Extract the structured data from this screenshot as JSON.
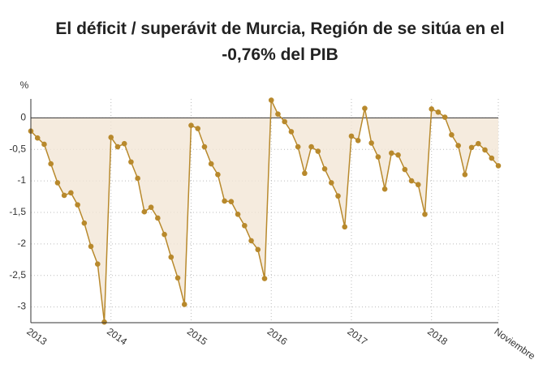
{
  "chart_data": {
    "type": "line",
    "title": "El déficit / superávit de Murcia, Región de se sitúa en el -0,76% del PIB",
    "ylabel": "%",
    "categories": [
      "2013",
      null,
      null,
      null,
      null,
      null,
      null,
      null,
      null,
      null,
      null,
      null,
      "2014",
      null,
      null,
      null,
      null,
      null,
      null,
      null,
      null,
      null,
      null,
      null,
      "2015",
      null,
      null,
      null,
      null,
      null,
      null,
      null,
      null,
      null,
      null,
      null,
      "2016",
      null,
      null,
      null,
      null,
      null,
      null,
      null,
      null,
      null,
      null,
      null,
      "2017",
      null,
      null,
      null,
      null,
      null,
      null,
      null,
      null,
      null,
      null,
      null,
      "2018",
      null,
      null,
      null,
      null,
      null,
      null,
      null,
      null,
      null,
      "Noviembre"
    ],
    "series": [
      {
        "name": "Déficit / superávit",
        "color": "#b8892c",
        "values": [
          -0.21,
          -0.32,
          -0.42,
          -0.73,
          -1.03,
          -1.23,
          -1.19,
          -1.38,
          -1.67,
          -2.04,
          -2.32,
          -3.24,
          -0.31,
          -0.46,
          -0.41,
          -0.7,
          -0.96,
          -1.49,
          -1.42,
          -1.59,
          -1.85,
          -2.21,
          -2.54,
          -2.96,
          -0.12,
          -0.17,
          -0.46,
          -0.73,
          -0.9,
          -1.32,
          -1.33,
          -1.53,
          -1.71,
          -1.95,
          -2.09,
          -2.55,
          0.28,
          0.06,
          -0.06,
          -0.22,
          -0.46,
          -0.88,
          -0.46,
          -0.53,
          -0.81,
          -1.03,
          -1.24,
          -1.73,
          -0.29,
          -0.36,
          0.15,
          -0.4,
          -0.62,
          -1.13,
          -0.56,
          -0.59,
          -0.82,
          -1.0,
          -1.06,
          -1.53,
          0.14,
          0.09,
          0.01,
          -0.27,
          -0.44,
          -0.9,
          -0.47,
          -0.41,
          -0.51,
          -0.64,
          -0.76
        ]
      }
    ],
    "fill_color": "#f3e6d6",
    "ylim": [
      -3.25,
      0.3
    ],
    "yticks": [
      0,
      {
        "value": -0.5,
        "label": "-0,5"
      },
      -1,
      {
        "value": -1.5,
        "label": "-1,5"
      },
      -2,
      {
        "value": -2.5,
        "label": "-2,5"
      },
      -3
    ],
    "grid": true
  }
}
